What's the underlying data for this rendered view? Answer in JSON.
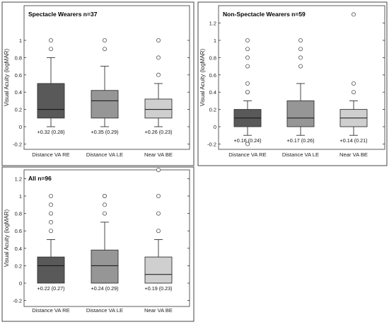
{
  "chart_data": [
    {
      "type": "boxplot",
      "title": "Spectacle Wearers n=37",
      "ylabel": "Visual Acuity (logMAR)",
      "ylim": [
        -0.25,
        1.1
      ],
      "yticks": [
        "1",
        "0.8",
        "0.6",
        "0.4",
        "0.2",
        "0",
        "-0.2"
      ],
      "grid": false,
      "box_colors": [
        "#595959",
        "#969696",
        "#cfcfcf"
      ],
      "categories": [
        "Distance VA RE",
        "Distance VA LE",
        "Near VA BE"
      ],
      "boxes": [
        {
          "min": 0.0,
          "q1": 0.1,
          "median": 0.2,
          "q3": 0.5,
          "max": 0.8,
          "outliers": [
            0.9,
            1.0
          ],
          "annotation": "+0.32 (0.28)"
        },
        {
          "min": 0.0,
          "q1": 0.1,
          "median": 0.3,
          "q3": 0.42,
          "max": 0.7,
          "outliers": [
            0.9,
            1.0
          ],
          "annotation": "+0.35 (0.29)"
        },
        {
          "min": 0.0,
          "q1": 0.1,
          "median": 0.2,
          "q3": 0.32,
          "max": 0.5,
          "outliers": [
            0.6,
            0.8,
            1.0
          ],
          "annotation": "+0.26 (0.23)"
        }
      ]
    },
    {
      "type": "boxplot",
      "title": "Non-Spectacle Wearers n=59",
      "ylabel": "Visual Acuity (logMAR)",
      "ylim": [
        -0.25,
        1.32
      ],
      "yticks": [
        "1.2",
        "1",
        "0.8",
        "0.6",
        "0.4",
        "0.2",
        "0",
        "-0.2"
      ],
      "grid": false,
      "box_colors": [
        "#595959",
        "#969696",
        "#cfcfcf"
      ],
      "categories": [
        "Distance VA RE",
        "Distance VA LE",
        "Near VA BE"
      ],
      "boxes": [
        {
          "min": -0.1,
          "q1": 0.0,
          "median": 0.1,
          "q3": 0.2,
          "max": 0.3,
          "outliers": [
            -0.2,
            0.4,
            0.4,
            0.5,
            0.7,
            0.8,
            0.9,
            1.0
          ],
          "annotation": "+0.16 (0.24)"
        },
        {
          "min": -0.1,
          "q1": 0.0,
          "median": 0.1,
          "q3": 0.3,
          "max": 0.5,
          "outliers": [
            0.7,
            0.8,
            0.9,
            1.0
          ],
          "annotation": "+0.17 (0.26)"
        },
        {
          "min": -0.1,
          "q1": 0.0,
          "median": 0.1,
          "q3": 0.2,
          "max": 0.3,
          "outliers": [
            0.4,
            0.5,
            1.3
          ],
          "annotation": "+0.14 (0.21)"
        }
      ]
    },
    {
      "type": "boxplot",
      "title": "All n=96",
      "ylabel": "Visual Acuity (logMAR)",
      "ylim": [
        -0.25,
        1.32
      ],
      "yticks": [
        "1.2",
        "1",
        "0.8",
        "0.6",
        "0.4",
        "0.2",
        "0",
        "-0.2"
      ],
      "grid": false,
      "box_colors": [
        "#595959",
        "#969696",
        "#cfcfcf"
      ],
      "categories": [
        "Distance VA RE",
        "Distance VA LE",
        "Near VA BE"
      ],
      "boxes": [
        {
          "min": 0.0,
          "q1": 0.0,
          "median": 0.2,
          "q3": 0.3,
          "max": 0.5,
          "outliers": [
            0.6,
            0.7,
            0.8,
            0.9,
            1.0
          ],
          "annotation": "+0.22 (0.27)"
        },
        {
          "min": 0.0,
          "q1": 0.0,
          "median": 0.2,
          "q3": 0.38,
          "max": 0.7,
          "outliers": [
            0.8,
            0.9,
            1.0,
            1.0
          ],
          "annotation": "+0.24 (0.29)"
        },
        {
          "min": 0.0,
          "q1": 0.0,
          "median": 0.1,
          "q3": 0.3,
          "max": 0.5,
          "outliers": [
            0.6,
            0.8,
            1.0,
            1.3
          ],
          "annotation": "+0.19 (0.23)"
        }
      ]
    }
  ]
}
